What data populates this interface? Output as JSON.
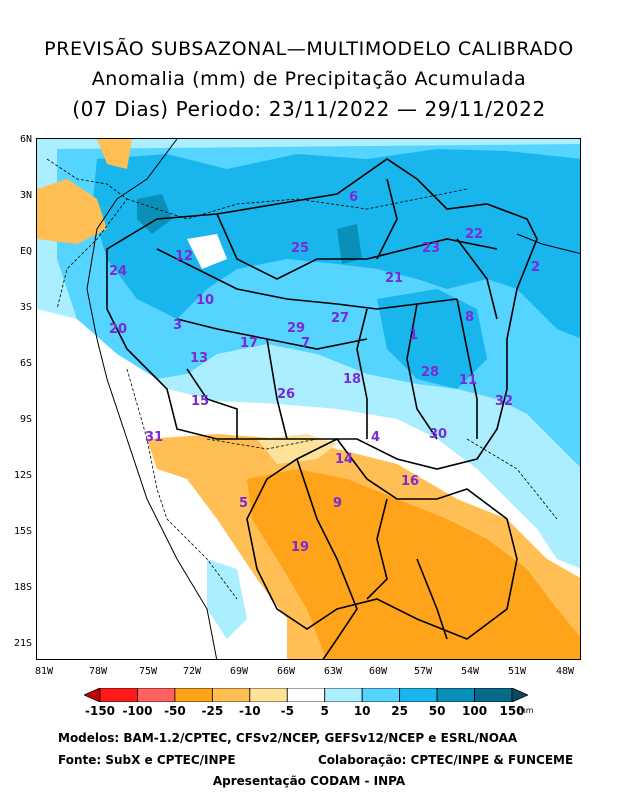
{
  "title": {
    "line1": "PREVISÃO SUBSAZONAL—MULTIMODELO CALIBRADO",
    "line2": "Anomalia (mm) de Precipitação Acumulada",
    "line3": "(07 Dias) Periodo: 23/11/2022 — 29/11/2022"
  },
  "axes": {
    "lat_labels": [
      "6N",
      "3N",
      "EQ",
      "3S",
      "6S",
      "9S",
      "12S",
      "15S",
      "18S",
      "21S"
    ],
    "lon_labels": [
      "81W",
      "78W",
      "75W",
      "72W",
      "69W",
      "66W",
      "63W",
      "60W",
      "57W",
      "54W",
      "51W",
      "48W"
    ]
  },
  "basins": [
    "1",
    "2",
    "3",
    "4",
    "5",
    "6",
    "7",
    "8",
    "9",
    "10",
    "11",
    "12",
    "13",
    "14",
    "15",
    "16",
    "17",
    "18",
    "19",
    "20",
    "21",
    "22",
    "23",
    "24",
    "25",
    "26",
    "27",
    "28",
    "29",
    "30",
    "31",
    "32"
  ],
  "legend": {
    "ticks": [
      "-150",
      "-100",
      "-50",
      "-25",
      "-10",
      "-5",
      "5",
      "10",
      "25",
      "50",
      "100",
      "150"
    ],
    "unit": "mm",
    "colors": [
      "#c80000",
      "#ff1a1a",
      "#ff6060",
      "#ffa31a",
      "#ffbf55",
      "#ffe29a",
      "#ffffff",
      "#aaeeff",
      "#55d4ff",
      "#19b6ee",
      "#0a90b8",
      "#076a8a",
      "#064a60"
    ]
  },
  "footer": {
    "models": "Modelos: BAM-1.2/CPTEC, CFSv2/NCEP, GEFSv12/NCEP e ESRL/NOAA",
    "source": "Fonte: SubX e CPTEC/INPE",
    "collab": "Colaboração: CPTEC/INPE & FUNCEME",
    "presentation": "Apresentação CODAM - INPA"
  }
}
